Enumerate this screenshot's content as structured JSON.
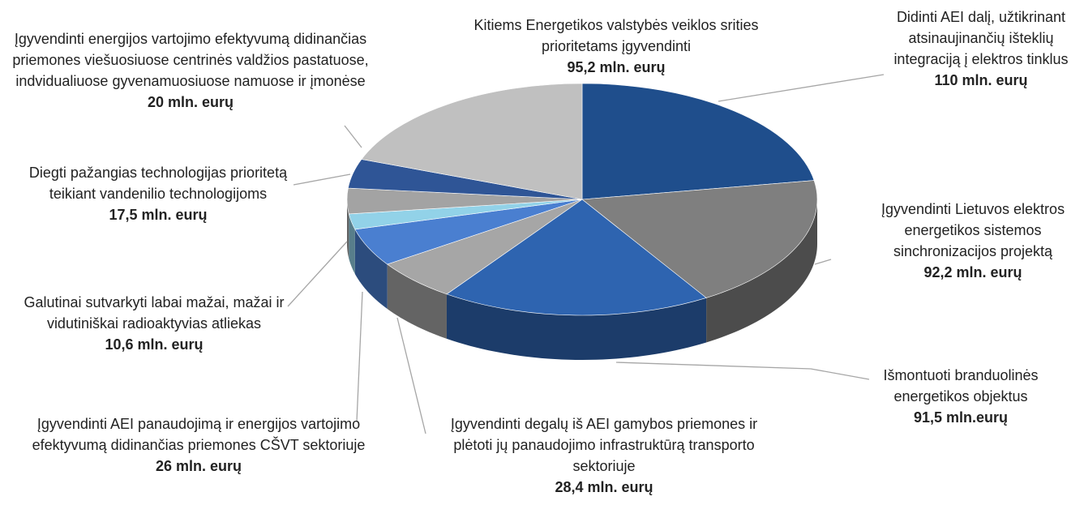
{
  "chart_data": {
    "type": "pie",
    "categories": [
      "Didinti AEI dalį, užtikrinant atsinaujinančių išteklių integraciją į elektros tinklus",
      "Įgyvendinti Lietuvos elektros energetikos sistemos sinchronizacijos projektą",
      "Išmontuoti branduolinės energetikos objektus",
      "Įgyvendinti degalų iš AEI gamybos priemones ir plėtoti jų panaudojimo infrastruktūrą transporto sektoriuje",
      "Įgyvendinti AEI panaudojimą ir energijos vartojimo efektyvumą didinančias priemones CŠVT sektoriuje",
      "Galutinai sutvarkyti labai mažai, mažai ir vidutiniškai radioaktyvias atliekas",
      "Diegti pažangias technologijas prioritetą teikiant vandenilio technologijoms",
      "Įgyvendinti energijos vartojimo efektyvumą didinančias priemones viešuosiuose centrinės valdžios pastatuose, indvidualiuose gyvenamuosiuose namuose ir įmonėse",
      "Kitiems Energetikos valstybės veiklos srities prioritetams įgyvendinti"
    ],
    "values": [
      110,
      92.2,
      91.5,
      28.4,
      26,
      10.6,
      17.5,
      20,
      95.2
    ],
    "value_labels": [
      "110 mln. eurų",
      "92,2 mln. eurų",
      "91,5 mln.eurų",
      "28,4 mln. eurų",
      "26 mln. eurų",
      "10,6 mln. eurų",
      "17,5 mln. eurų",
      "20 mln. eurų",
      "95,2 mln. eurų"
    ],
    "colors": [
      "#1f4e8c",
      "#7f7f7f",
      "#2e64b0",
      "#a6a6a6",
      "#4a7fd0",
      "#92d2e8",
      "#a3a3a3",
      "#2f5596",
      "#c0c0c0"
    ]
  }
}
